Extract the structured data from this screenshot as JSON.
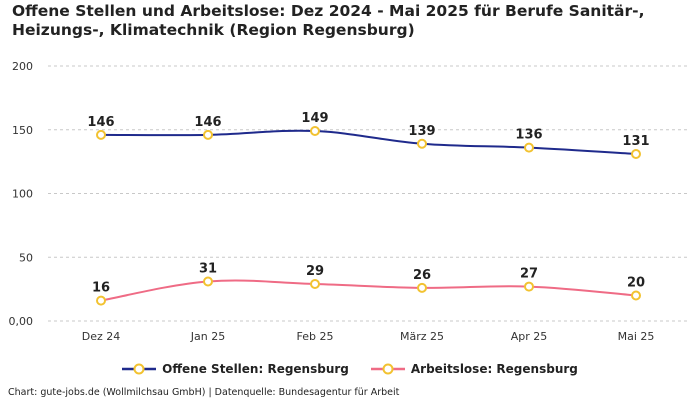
{
  "header": {
    "title": "Offene Stellen und Arbeitslose: Dez 2024 - Mai 2025 für Berufe Sanitär-, Heizungs-, Klimatechnik (Region Regensburg)"
  },
  "footer": {
    "credit": "Chart: gute-jobs.de (Wollmilchsau GmbH) | Datenquelle: Bundesagentur für Arbeit"
  },
  "colors": {
    "series_1": "#1f2a8c",
    "series_2": "#ef6b85",
    "marker": "#f2c230"
  },
  "chart_data": {
    "type": "line",
    "categories": [
      "Dez 24",
      "Jan 25",
      "Feb 25",
      "März 25",
      "Apr 25",
      "Mai 25"
    ],
    "series": [
      {
        "name": "Offene Stellen: Regensburg",
        "values": [
          146,
          146,
          149,
          139,
          136,
          131
        ]
      },
      {
        "name": "Arbeitslose: Regensburg",
        "values": [
          16,
          31,
          29,
          26,
          27,
          20
        ]
      }
    ],
    "y_ticks": [
      "0,00",
      "50",
      "100",
      "150",
      "200"
    ],
    "y_tick_values": [
      0,
      50,
      100,
      150,
      200
    ],
    "ylim": [
      0,
      200
    ],
    "grid": true,
    "legend": "bottom-center"
  }
}
